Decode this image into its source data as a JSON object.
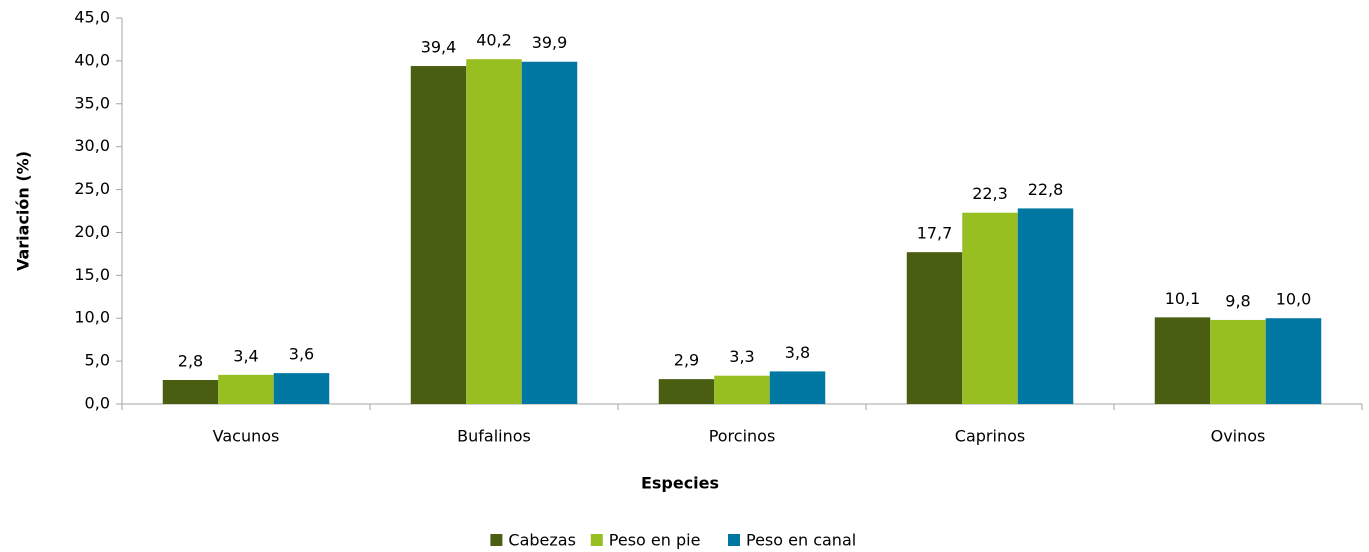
{
  "chart_data": {
    "type": "bar",
    "x_label": "Especies",
    "y_label": "Variación (%)",
    "categories": [
      "Vacunos",
      "Bufalinos",
      "Porcinos",
      "Caprinos",
      "Ovinos"
    ],
    "series": [
      {
        "name": "Cabezas",
        "color": "#4a5e12",
        "values": [
          2.8,
          39.4,
          2.9,
          17.7,
          10.1
        ],
        "value_labels": [
          "2,8",
          "39,4",
          "2,9",
          "17,7",
          "10,1"
        ]
      },
      {
        "name": "Peso en pie",
        "color": "#98bf21",
        "values": [
          3.4,
          40.2,
          3.3,
          22.3,
          9.8
        ],
        "value_labels": [
          "3,4",
          "40,2",
          "3,3",
          "22,3",
          "9,8"
        ]
      },
      {
        "name": "Peso en canal",
        "color": "#0077a3",
        "values": [
          3.6,
          39.9,
          3.8,
          22.8,
          10.0
        ],
        "value_labels": [
          "3,6",
          "39,9",
          "3,8",
          "22,8",
          "10,0"
        ]
      }
    ],
    "ylim": [
      0,
      45
    ],
    "yticks": [
      {
        "value": 0,
        "label": "0,0"
      },
      {
        "value": 5,
        "label": "5,0"
      },
      {
        "value": 10,
        "label": "10,0"
      },
      {
        "value": 15,
        "label": "15,0"
      },
      {
        "value": 20,
        "label": "20,0"
      },
      {
        "value": 25,
        "label": "25,0"
      },
      {
        "value": 30,
        "label": "30,0"
      },
      {
        "value": 35,
        "label": "35,0"
      },
      {
        "value": 40,
        "label": "40,0"
      },
      {
        "value": 45,
        "label": "45,0"
      }
    ],
    "grid": false,
    "legend": "bottom"
  }
}
